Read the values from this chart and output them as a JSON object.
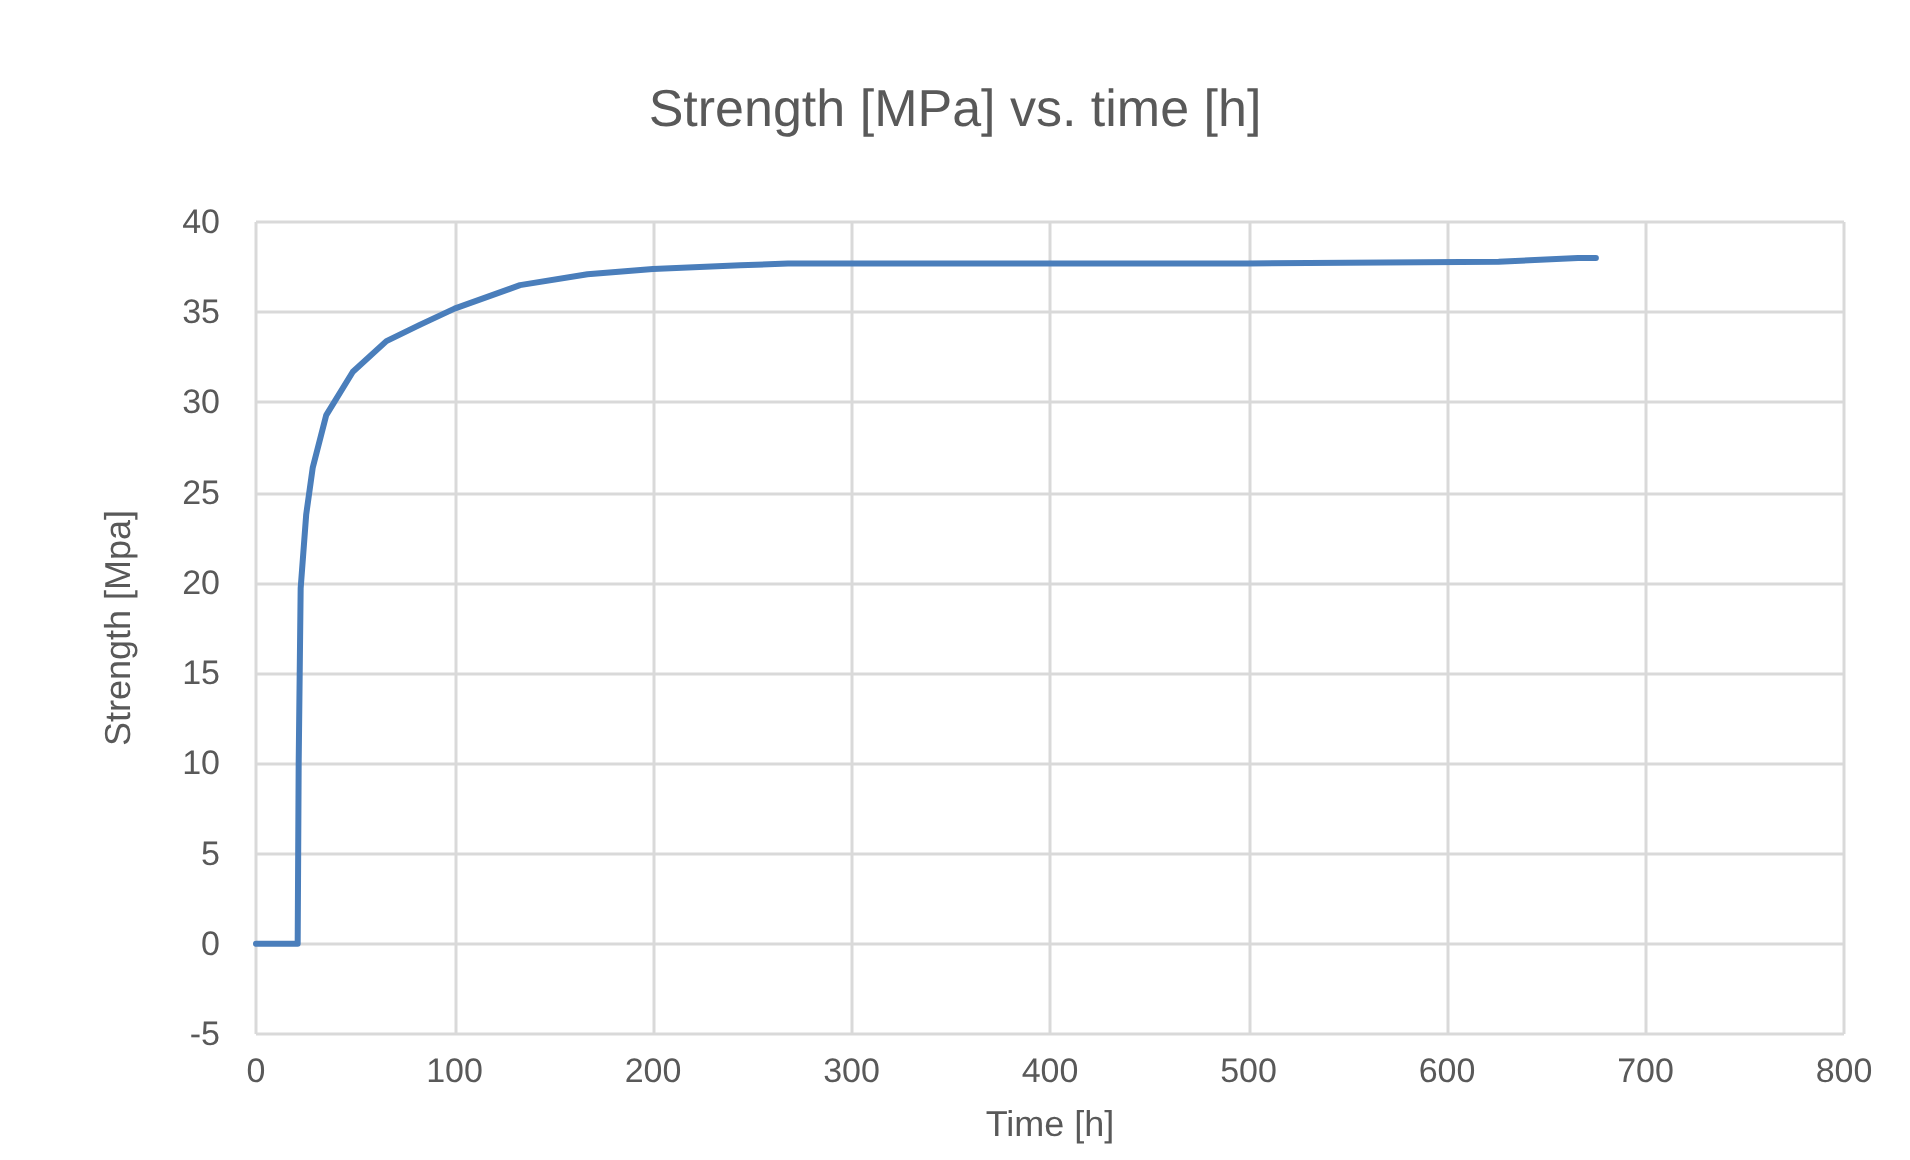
{
  "chart_data": {
    "type": "line",
    "title": "Strength [MPa] vs. time [h]",
    "xlabel": "Time [h]",
    "ylabel": "Strength [Mpa]",
    "x": [
      0,
      21,
      21.5,
      22.5,
      25.3,
      28.6,
      35.4,
      48.8,
      65.7,
      82.5,
      100,
      133,
      167,
      200,
      244,
      268,
      400,
      500,
      626,
      666,
      675
    ],
    "series": [
      {
        "color": "#4a7ebb",
        "values": [
          0,
          0,
          10,
          19.7,
          23.8,
          26.4,
          29.3,
          31.7,
          33.4,
          34.3,
          35.2,
          36.5,
          37.1,
          37.4,
          37.6,
          37.7,
          37.7,
          37.7,
          37.8,
          38.0,
          38.0
        ]
      }
    ],
    "xlim": [
      0,
      800
    ],
    "xticks": [
      0,
      100,
      200,
      300,
      400,
      500,
      600,
      700,
      800
    ],
    "ylim": [
      -5,
      40
    ],
    "yticks": [
      -5,
      0,
      5,
      10,
      15,
      20,
      25,
      30,
      35,
      40
    ],
    "grid": true,
    "marker": "none",
    "line_style": "solid"
  }
}
